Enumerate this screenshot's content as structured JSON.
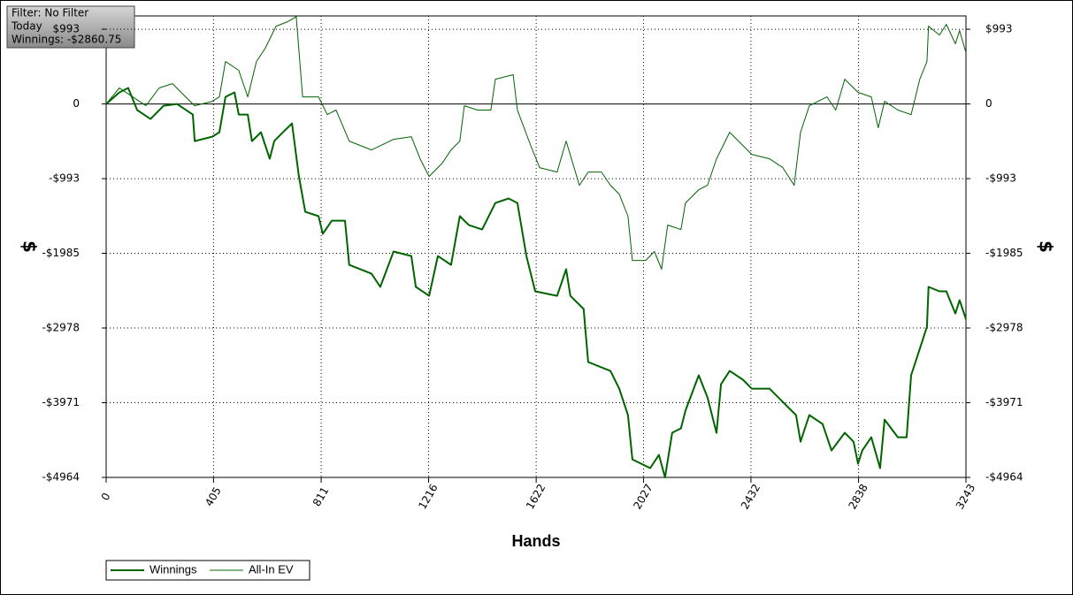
{
  "chart_data": {
    "type": "line",
    "info": [
      "Filter: No Filter",
      "Today",
      "Winnings: -$2860.75"
    ],
    "xlabel": "Hands",
    "ylabel": "$",
    "xlim": [
      0,
      3243
    ],
    "xticks": [
      0,
      405,
      811,
      1216,
      1622,
      2027,
      2432,
      2838,
      3243
    ],
    "ylim": [
      -4964,
      1170
    ],
    "yticks": [
      {
        "value": 993,
        "label": "$993"
      },
      0,
      {
        "value": -993,
        "label": "-$993"
      },
      {
        "value": -1985,
        "label": "-$1985"
      },
      {
        "value": -2978,
        "label": "-$2978"
      },
      {
        "value": -3971,
        "label": "-$3971"
      },
      {
        "value": -4964,
        "label": "-$4964"
      }
    ],
    "grid": true,
    "series": [
      {
        "name": "Winnings",
        "color": "#006400",
        "width": 2,
        "x": [
          0,
          50,
          83,
          117,
          167,
          217,
          267,
          327,
          334,
          400,
          427,
          450,
          484,
          500,
          534,
          550,
          584,
          617,
          634,
          667,
          701,
          727,
          751,
          801,
          817,
          851,
          901,
          917,
          1001,
          1034,
          1084,
          1151,
          1168,
          1218,
          1251,
          1301,
          1334,
          1368,
          1418,
          1468,
          1518,
          1551,
          1585,
          1618,
          1701,
          1735,
          1751,
          1801,
          1818,
          1902,
          1935,
          1968,
          1985,
          2052,
          2085,
          2108,
          2135,
          2168,
          2185,
          2235,
          2268,
          2302,
          2319,
          2352,
          2402,
          2435,
          2502,
          2552,
          2602,
          2619,
          2652,
          2702,
          2736,
          2786,
          2819,
          2836,
          2852,
          2886,
          2919,
          2936,
          2986,
          3019,
          3036,
          3069,
          3096,
          3102,
          3143,
          3169,
          3203,
          3219,
          3243
        ],
        "values": [
          0,
          153,
          212,
          -82,
          -200,
          -24,
          0,
          -141,
          -494,
          -435,
          -376,
          94,
          153,
          -141,
          -141,
          -494,
          -376,
          -729,
          -494,
          -376,
          -259,
          -964,
          -1434,
          -1492,
          -1727,
          -1551,
          -1551,
          -2139,
          -2256,
          -2432,
          -1962,
          -2021,
          -2432,
          -2550,
          -2021,
          -2139,
          -1492,
          -1610,
          -1669,
          -1316,
          -1257,
          -1316,
          -2021,
          -2491,
          -2550,
          -2197,
          -2550,
          -2726,
          -3431,
          -3549,
          -3784,
          -4136,
          -4724,
          -4841,
          -4665,
          -4964,
          -4371,
          -4312,
          -4077,
          -3607,
          -3901,
          -4371,
          -3725,
          -3549,
          -3666,
          -3784,
          -3784,
          -3960,
          -4136,
          -4489,
          -4136,
          -4254,
          -4606,
          -4371,
          -4489,
          -4782,
          -4606,
          -4430,
          -4841,
          -4195,
          -4430,
          -4430,
          -3607,
          -3255,
          -2961,
          -2432,
          -2491,
          -2491,
          -2785,
          -2609,
          -2860.75
        ]
      },
      {
        "name": "All-In EV",
        "color": "#006400",
        "width": 1,
        "x": [
          0,
          50,
          100,
          150,
          200,
          250,
          300,
          334,
          400,
          427,
          450,
          500,
          534,
          567,
          600,
          641,
          684,
          717,
          741,
          801,
          834,
          867,
          917,
          1001,
          1084,
          1151,
          1184,
          1218,
          1268,
          1301,
          1334,
          1351,
          1401,
          1451,
          1468,
          1535,
          1551,
          1601,
          1635,
          1701,
          1735,
          1785,
          1818,
          1868,
          1902,
          1935,
          1968,
          1985,
          2035,
          2068,
          2095,
          2118,
          2168,
          2185,
          2235,
          2268,
          2302,
          2352,
          2385,
          2435,
          2502,
          2552,
          2595,
          2619,
          2652,
          2719,
          2752,
          2786,
          2836,
          2886,
          2912,
          2936,
          2986,
          3036,
          3069,
          3096,
          3102,
          3143,
          3169,
          3203,
          3219,
          3243
        ],
        "values": [
          0,
          212,
          94,
          -24,
          212,
          270,
          94,
          -24,
          35,
          94,
          564,
          447,
          94,
          564,
          740,
          1034,
          1093,
          1160,
          94,
          94,
          -141,
          -82,
          -494,
          -611,
          -470,
          -435,
          -729,
          -964,
          -787,
          -611,
          -494,
          -24,
          -82,
          -82,
          329,
          388,
          -82,
          -552,
          -846,
          -905,
          -494,
          -1081,
          -905,
          -905,
          -1081,
          -1199,
          -1492,
          -2080,
          -2080,
          -1962,
          -2197,
          -1610,
          -1669,
          -1316,
          -1140,
          -1081,
          -729,
          -376,
          -494,
          -670,
          -729,
          -846,
          -1081,
          -376,
          -24,
          94,
          -82,
          329,
          153,
          94,
          -317,
          35,
          -82,
          -141,
          329,
          564,
          1034,
          916,
          1058,
          799,
          975,
          682
        ]
      }
    ]
  }
}
